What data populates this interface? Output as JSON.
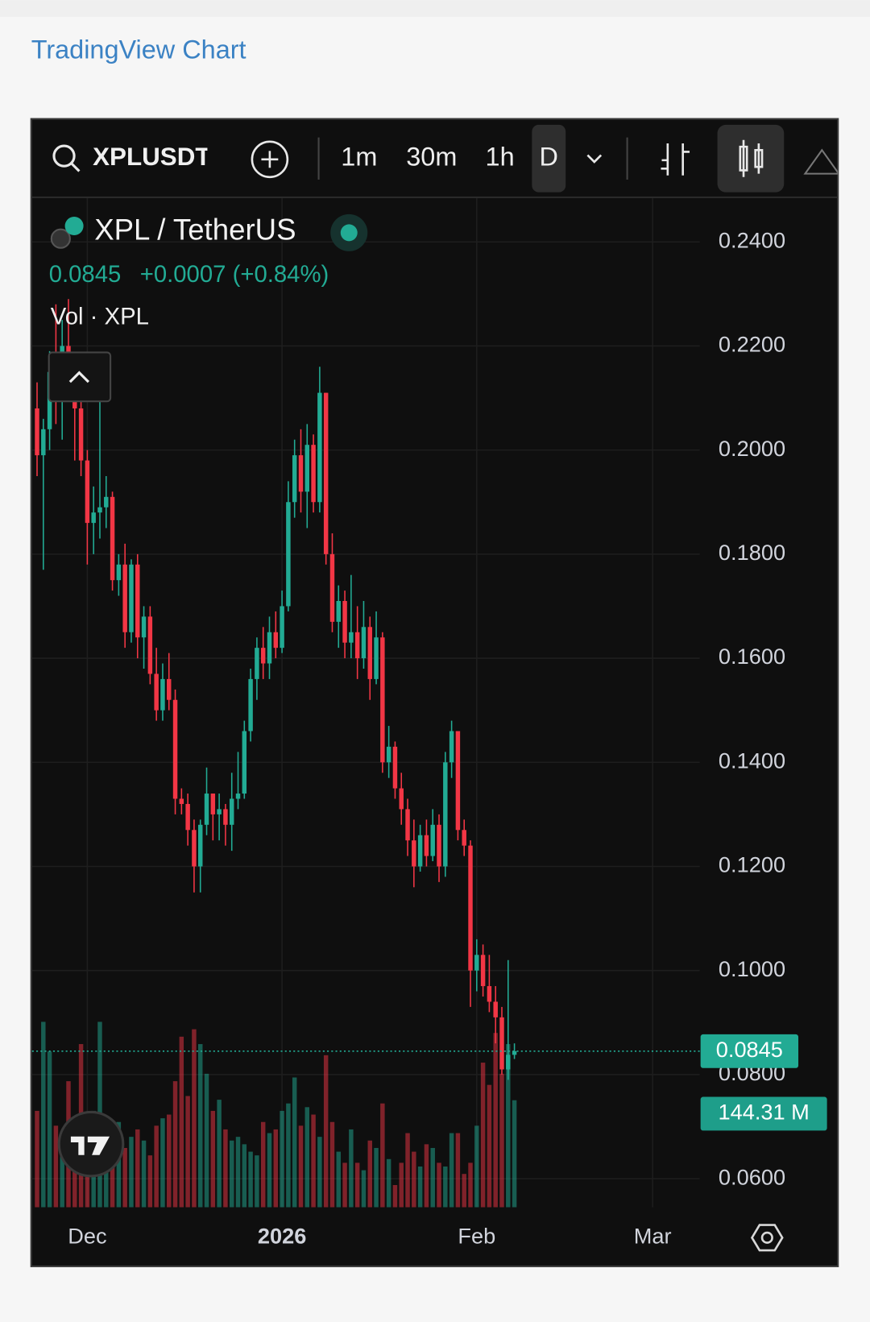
{
  "header": {
    "title": "TradingView Chart"
  },
  "toolbar": {
    "symbol": "XPLUSDT",
    "intervals": [
      "1m",
      "30m",
      "1h",
      "D"
    ]
  },
  "legend": {
    "change": "+0.0007 (+0.84%)",
    "volume_title": "Vol · XPL"
  },
  "chart_data": {
    "type": "candlestick",
    "title": "XPL / TetherUS",
    "up_color": "#22ab94",
    "down_color": "#f23645",
    "grid": true,
    "xlim": [
      -0.8,
      105.5
    ],
    "xticks": [
      {
        "value": 8,
        "label": "Dec"
      },
      {
        "value": 39,
        "label": "2026"
      },
      {
        "value": 70,
        "label": "Feb"
      },
      {
        "value": 98,
        "label": "Mar"
      }
    ],
    "ylim": [
      0.0545,
      0.2484
    ],
    "yticks": [
      {
        "value": 0.06,
        "label": "0.0600"
      },
      {
        "value": 0.08,
        "label": "0.0800"
      },
      {
        "value": 0.1,
        "label": "0.1000"
      },
      {
        "value": 0.12,
        "label": "0.1200"
      },
      {
        "value": 0.14,
        "label": "0.1400"
      },
      {
        "value": 0.16,
        "label": "0.1600"
      },
      {
        "value": 0.18,
        "label": "0.1800"
      },
      {
        "value": 0.2,
        "label": "0.2000"
      },
      {
        "value": 0.22,
        "label": "0.2200"
      },
      {
        "value": 0.24,
        "label": "0.2400"
      }
    ],
    "open": [
      0.208,
      0.199,
      0.204,
      0.215,
      0.21,
      0.22,
      0.214,
      0.208,
      0.198,
      0.186,
      0.188,
      0.189,
      0.191,
      0.175,
      0.178,
      0.165,
      0.178,
      0.164,
      0.168,
      0.157,
      0.15,
      0.156,
      0.152,
      0.133,
      0.132,
      0.127,
      0.12,
      0.128,
      0.134,
      0.13,
      0.131,
      0.128,
      0.133,
      0.134,
      0.146,
      0.156,
      0.162,
      0.159,
      0.165,
      0.162,
      0.17,
      0.19,
      0.199,
      0.192,
      0.201,
      0.19,
      0.211,
      0.18,
      0.167,
      0.171,
      0.163,
      0.165,
      0.16,
      0.166,
      0.156,
      0.164,
      0.14,
      0.143,
      0.135,
      0.131,
      0.125,
      0.12,
      0.126,
      0.122,
      0.128,
      0.12,
      0.14,
      0.146,
      0.127,
      0.124,
      0.1,
      0.103,
      0.097,
      0.094,
      0.091,
      0.081,
      0.0838
    ],
    "high": [
      0.213,
      0.206,
      0.219,
      0.228,
      0.225,
      0.229,
      0.217,
      0.212,
      0.2,
      0.193,
      0.21,
      0.195,
      0.192,
      0.18,
      0.182,
      0.179,
      0.18,
      0.17,
      0.17,
      0.162,
      0.159,
      0.161,
      0.154,
      0.135,
      0.134,
      0.129,
      0.129,
      0.139,
      0.134,
      0.134,
      0.132,
      0.138,
      0.142,
      0.148,
      0.158,
      0.164,
      0.166,
      0.168,
      0.169,
      0.173,
      0.194,
      0.202,
      0.204,
      0.205,
      0.203,
      0.216,
      0.211,
      0.184,
      0.174,
      0.173,
      0.176,
      0.17,
      0.171,
      0.168,
      0.169,
      0.165,
      0.147,
      0.144,
      0.138,
      0.133,
      0.129,
      0.128,
      0.129,
      0.131,
      0.13,
      0.142,
      0.148,
      0.146,
      0.129,
      0.125,
      0.106,
      0.105,
      0.103,
      0.097,
      0.093,
      0.102,
      0.086
    ],
    "low": [
      0.195,
      0.177,
      0.2,
      0.205,
      0.202,
      0.211,
      0.198,
      0.195,
      0.178,
      0.18,
      0.183,
      0.185,
      0.173,
      0.172,
      0.162,
      0.163,
      0.16,
      0.158,
      0.155,
      0.148,
      0.148,
      0.15,
      0.13,
      0.13,
      0.124,
      0.115,
      0.115,
      0.126,
      0.125,
      0.125,
      0.124,
      0.123,
      0.131,
      0.133,
      0.144,
      0.152,
      0.156,
      0.156,
      0.16,
      0.161,
      0.169,
      0.187,
      0.188,
      0.185,
      0.188,
      0.188,
      0.178,
      0.165,
      0.162,
      0.16,
      0.16,
      0.156,
      0.158,
      0.152,
      0.155,
      0.138,
      0.137,
      0.133,
      0.128,
      0.122,
      0.116,
      0.119,
      0.12,
      0.121,
      0.117,
      0.118,
      0.137,
      0.125,
      0.122,
      0.093,
      0.096,
      0.095,
      0.092,
      0.086,
      0.08,
      0.079,
      0.083
    ],
    "close": [
      0.199,
      0.204,
      0.215,
      0.21,
      0.22,
      0.214,
      0.208,
      0.198,
      0.186,
      0.188,
      0.189,
      0.191,
      0.175,
      0.178,
      0.165,
      0.178,
      0.164,
      0.168,
      0.157,
      0.15,
      0.156,
      0.152,
      0.133,
      0.132,
      0.127,
      0.12,
      0.128,
      0.134,
      0.13,
      0.131,
      0.128,
      0.133,
      0.134,
      0.146,
      0.156,
      0.162,
      0.159,
      0.165,
      0.162,
      0.17,
      0.19,
      0.199,
      0.192,
      0.201,
      0.19,
      0.211,
      0.18,
      0.167,
      0.171,
      0.163,
      0.165,
      0.16,
      0.166,
      0.156,
      0.164,
      0.14,
      0.143,
      0.135,
      0.131,
      0.125,
      0.12,
      0.126,
      0.122,
      0.128,
      0.12,
      0.14,
      0.146,
      0.127,
      0.124,
      0.1,
      0.103,
      0.097,
      0.094,
      0.091,
      0.081,
      0.0838,
      0.0845
    ],
    "volume": [
      130,
      250,
      210,
      110,
      90,
      170,
      70,
      220,
      95,
      130,
      250,
      120,
      100,
      115,
      80,
      95,
      105,
      90,
      70,
      110,
      120,
      125,
      170,
      230,
      150,
      240,
      220,
      180,
      130,
      145,
      105,
      90,
      95,
      85,
      75,
      70,
      115,
      100,
      105,
      130,
      140,
      175,
      110,
      135,
      125,
      95,
      205,
      115,
      75,
      60,
      105,
      60,
      50,
      90,
      80,
      140,
      65,
      30,
      60,
      100,
      75,
      55,
      85,
      80,
      60,
      55,
      100,
      100,
      45,
      60,
      110,
      195,
      165,
      235,
      180,
      220,
      144.31
    ],
    "last_volume_label": "144.31 M"
  }
}
